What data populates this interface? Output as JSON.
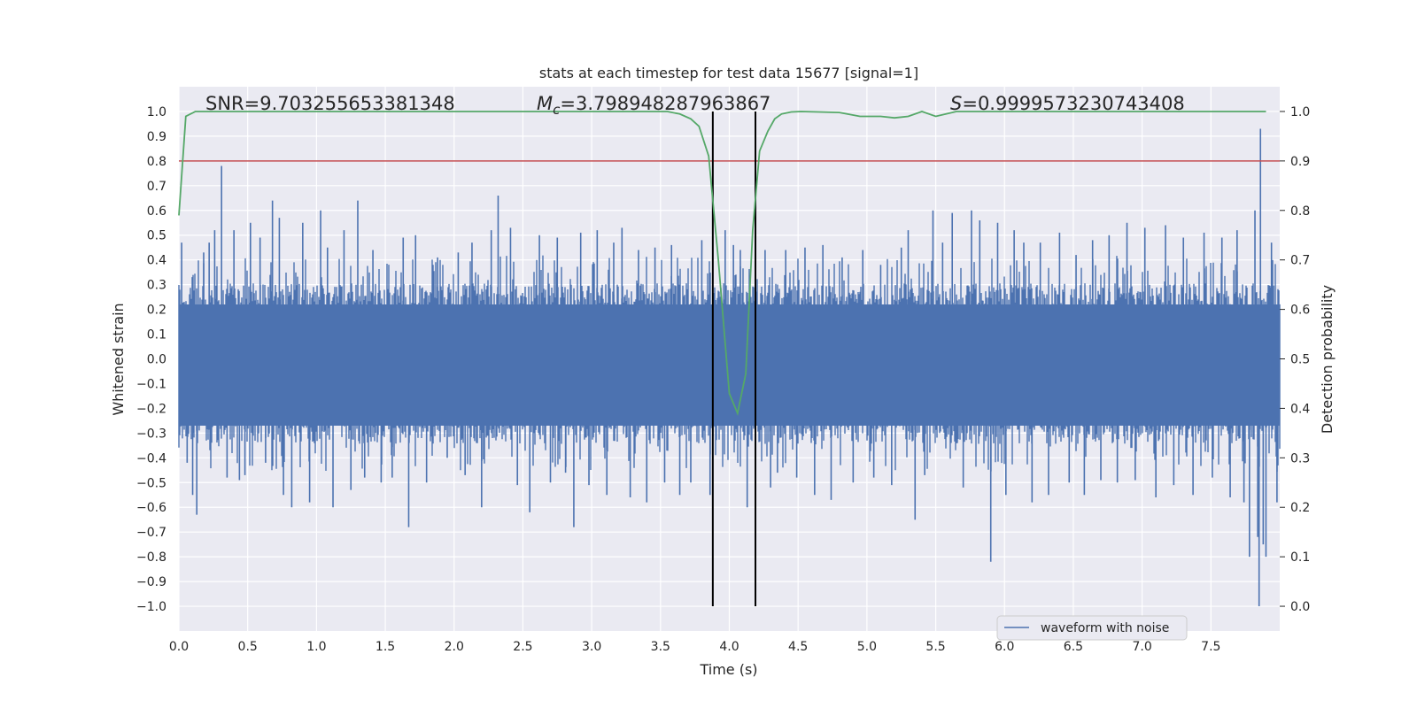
{
  "chart_data": {
    "type": "line",
    "title": "stats at each timestep for test data 15677 [signal=1]",
    "xlabel": "Time (s)",
    "ylabel": "Whitened strain",
    "y2label": "Detection probability",
    "xlim": [
      0.0,
      8.0
    ],
    "ylim": [
      -1.1,
      1.1
    ],
    "y2lim": [
      -0.05,
      1.05
    ],
    "xticks": [
      "0.0",
      "0.5",
      "1.0",
      "1.5",
      "2.0",
      "2.5",
      "3.0",
      "3.5",
      "4.0",
      "4.5",
      "5.0",
      "5.5",
      "6.0",
      "6.5",
      "7.0",
      "7.5"
    ],
    "yticks": [
      "1.0",
      "0.9",
      "0.8",
      "0.7",
      "0.6",
      "0.5",
      "0.4",
      "0.3",
      "0.2",
      "0.1",
      "0.0",
      "−0.1",
      "−0.2",
      "−0.3",
      "−0.4",
      "−0.5",
      "−0.6",
      "−0.7",
      "−0.8",
      "−0.9",
      "−1.0"
    ],
    "y2ticks": [
      "1.0",
      "0.9",
      "0.8",
      "0.7",
      "0.6",
      "0.5",
      "0.4",
      "0.3",
      "0.2",
      "0.1",
      "0.0"
    ],
    "annotations": {
      "snr_prefix": "SNR=",
      "snr": "9.703255653381348",
      "mc_symbol": "M",
      "mc_sub": "c",
      "mc_value": "=3.798948287963867",
      "s_symbol": "S",
      "s_value": "=0.9999573230743408"
    },
    "threshold": {
      "axis": "y2",
      "value": 0.9,
      "color": "#c44e52"
    },
    "vlines": [
      3.88,
      4.19
    ],
    "legend": {
      "label": "waveform with noise",
      "position": "lower-right"
    },
    "series": [
      {
        "name": "waveform with noise",
        "axis": "y",
        "color": "#4c72b0",
        "envelope_typical": [
          -0.36,
          0.32
        ],
        "spikes": [
          [
            0.02,
            0.47
          ],
          [
            0.06,
            -0.42
          ],
          [
            0.1,
            -0.55
          ],
          [
            0.13,
            -0.63
          ],
          [
            0.18,
            0.43
          ],
          [
            0.22,
            0.47
          ],
          [
            0.26,
            0.52
          ],
          [
            0.31,
            0.78
          ],
          [
            0.35,
            -0.48
          ],
          [
            0.4,
            0.52
          ],
          [
            0.44,
            -0.49
          ],
          [
            0.48,
            -0.47
          ],
          [
            0.52,
            0.55
          ],
          [
            0.59,
            0.49
          ],
          [
            0.63,
            -0.42
          ],
          [
            0.68,
            0.64
          ],
          [
            0.73,
            0.57
          ],
          [
            0.76,
            -0.55
          ],
          [
            0.82,
            -0.6
          ],
          [
            0.9,
            0.55
          ],
          [
            0.95,
            -0.58
          ],
          [
            1.03,
            0.6
          ],
          [
            1.08,
            0.45
          ],
          [
            1.12,
            -0.6
          ],
          [
            1.2,
            0.52
          ],
          [
            1.25,
            -0.53
          ],
          [
            1.3,
            0.64
          ],
          [
            1.35,
            -0.48
          ],
          [
            1.41,
            0.44
          ],
          [
            1.47,
            -0.5
          ],
          [
            1.55,
            -0.48
          ],
          [
            1.63,
            0.49
          ],
          [
            1.67,
            -0.68
          ],
          [
            1.72,
            0.5
          ],
          [
            1.8,
            -0.5
          ],
          [
            1.88,
            0.41
          ],
          [
            1.95,
            -0.4
          ],
          [
            2.03,
            0.43
          ],
          [
            2.08,
            -0.47
          ],
          [
            2.13,
            0.47
          ],
          [
            2.2,
            -0.6
          ],
          [
            2.27,
            0.52
          ],
          [
            2.32,
            0.66
          ],
          [
            2.41,
            0.53
          ],
          [
            2.46,
            -0.51
          ],
          [
            2.55,
            -0.62
          ],
          [
            2.62,
            0.5
          ],
          [
            2.7,
            -0.5
          ],
          [
            2.75,
            0.49
          ],
          [
            2.81,
            -0.46
          ],
          [
            2.87,
            -0.68
          ],
          [
            2.92,
            0.51
          ],
          [
            2.98,
            -0.51
          ],
          [
            3.04,
            0.52
          ],
          [
            3.11,
            -0.55
          ],
          [
            3.16,
            0.47
          ],
          [
            3.22,
            0.53
          ],
          [
            3.28,
            -0.56
          ],
          [
            3.34,
            0.44
          ],
          [
            3.4,
            -0.58
          ],
          [
            3.46,
            0.45
          ],
          [
            3.53,
            -0.5
          ],
          [
            3.58,
            0.46
          ],
          [
            3.64,
            -0.55
          ],
          [
            3.72,
            -0.5
          ],
          [
            3.8,
            0.48
          ],
          [
            3.86,
            -0.55
          ],
          [
            3.97,
            0.52
          ],
          [
            4.03,
            0.46
          ],
          [
            4.08,
            0.44
          ],
          [
            4.13,
            -0.6
          ],
          [
            4.26,
            0.44
          ],
          [
            4.3,
            -0.52
          ],
          [
            4.35,
            -0.46
          ],
          [
            4.41,
            0.44
          ],
          [
            4.49,
            -0.48
          ],
          [
            4.55,
            0.45
          ],
          [
            4.62,
            -0.55
          ],
          [
            4.68,
            0.46
          ],
          [
            4.74,
            -0.57
          ],
          [
            4.82,
            0.41
          ],
          [
            4.9,
            -0.5
          ],
          [
            4.97,
            0.44
          ],
          [
            5.05,
            -0.48
          ],
          [
            5.1,
            0.38
          ],
          [
            5.18,
            -0.51
          ],
          [
            5.25,
            0.45
          ],
          [
            5.3,
            0.52
          ],
          [
            5.35,
            -0.65
          ],
          [
            5.42,
            -0.47
          ],
          [
            5.48,
            0.6
          ],
          [
            5.55,
            0.47
          ],
          [
            5.62,
            0.59
          ],
          [
            5.7,
            -0.52
          ],
          [
            5.76,
            0.6
          ],
          [
            5.82,
            0.56
          ],
          [
            5.9,
            -0.82
          ],
          [
            5.95,
            0.55
          ],
          [
            6.01,
            -0.55
          ],
          [
            6.07,
            0.52
          ],
          [
            6.14,
            0.47
          ],
          [
            6.2,
            -0.58
          ],
          [
            6.26,
            0.47
          ],
          [
            6.32,
            -0.55
          ],
          [
            6.4,
            0.51
          ],
          [
            6.47,
            -0.5
          ],
          [
            6.52,
            0.42
          ],
          [
            6.58,
            -0.55
          ],
          [
            6.64,
            0.48
          ],
          [
            6.7,
            -0.49
          ],
          [
            6.76,
            0.5
          ],
          [
            6.82,
            -0.5
          ],
          [
            6.89,
            0.55
          ],
          [
            6.95,
            -0.49
          ],
          [
            7.02,
            0.53
          ],
          [
            7.1,
            -0.56
          ],
          [
            7.17,
            0.54
          ],
          [
            7.23,
            -0.51
          ],
          [
            7.3,
            0.49
          ],
          [
            7.37,
            -0.55
          ],
          [
            7.45,
            0.51
          ],
          [
            7.51,
            -0.48
          ],
          [
            7.58,
            0.49
          ],
          [
            7.64,
            -0.56
          ],
          [
            7.69,
            0.52
          ],
          [
            7.74,
            -0.58
          ],
          [
            7.78,
            -0.8
          ],
          [
            7.82,
            0.6
          ],
          [
            7.84,
            -0.72
          ],
          [
            7.85,
            -1.0
          ],
          [
            7.86,
            0.93
          ],
          [
            7.88,
            -0.75
          ],
          [
            7.9,
            -0.8
          ],
          [
            7.94,
            0.47
          ],
          [
            7.98,
            -0.58
          ]
        ]
      },
      {
        "name": "detection probability",
        "axis": "y2",
        "color": "#55a868",
        "x": [
          0.0,
          0.05,
          0.12,
          0.3,
          1.0,
          2.0,
          3.0,
          3.4,
          3.55,
          3.64,
          3.72,
          3.78,
          3.85,
          3.92,
          4.0,
          4.06,
          4.12,
          4.17,
          4.22,
          4.28,
          4.33,
          4.38,
          4.45,
          4.52,
          4.65,
          4.8,
          4.95,
          5.1,
          5.2,
          5.3,
          5.4,
          5.5,
          5.65,
          5.8,
          6.0,
          7.0,
          7.9
        ],
        "y": [
          0.79,
          0.99,
          1.0,
          1.0,
          1.0,
          1.0,
          1.0,
          1.0,
          1.0,
          0.995,
          0.985,
          0.97,
          0.91,
          0.7,
          0.43,
          0.39,
          0.47,
          0.76,
          0.92,
          0.96,
          0.985,
          0.995,
          0.999,
          1.0,
          0.999,
          0.998,
          0.99,
          0.99,
          0.987,
          0.99,
          1.0,
          0.99,
          1.0,
          1.0,
          1.0,
          1.0,
          1.0
        ]
      }
    ]
  }
}
